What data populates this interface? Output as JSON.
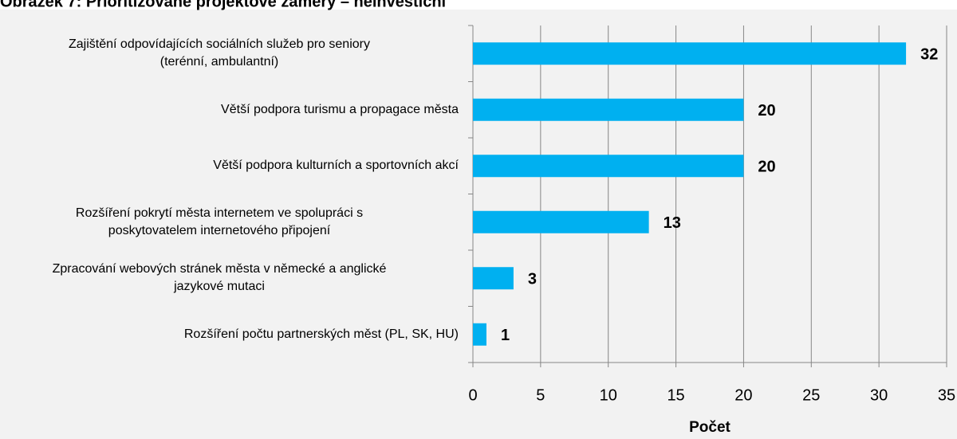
{
  "chart_data": {
    "type": "bar",
    "orientation": "horizontal",
    "title": "Obrázek 7: Prioritizované projektové záměry – neinvestiční",
    "xlabel": "Počet",
    "categories": [
      "Zajištění odpovídajících sociálních služeb pro seniory\n(terénní, ambulantní)",
      "Větší podpora turismu a propagace města",
      "Větší podpora kulturních a sportovních akcí",
      "Rozšíření pokrytí města internetem ve spolupráci s\nposkytovatelem internetového připojení",
      "Zpracování webových stránek města v německé a anglické\njazykové mutaci",
      "Rozšíření počtu partnerských měst (PL, SK, HU)"
    ],
    "values": [
      32,
      20,
      20,
      13,
      3,
      1
    ],
    "color": "#00b0f0",
    "xlim": [
      0,
      35
    ],
    "xticks": [
      0,
      5,
      10,
      15,
      20,
      25,
      30,
      35
    ],
    "grid": true
  }
}
